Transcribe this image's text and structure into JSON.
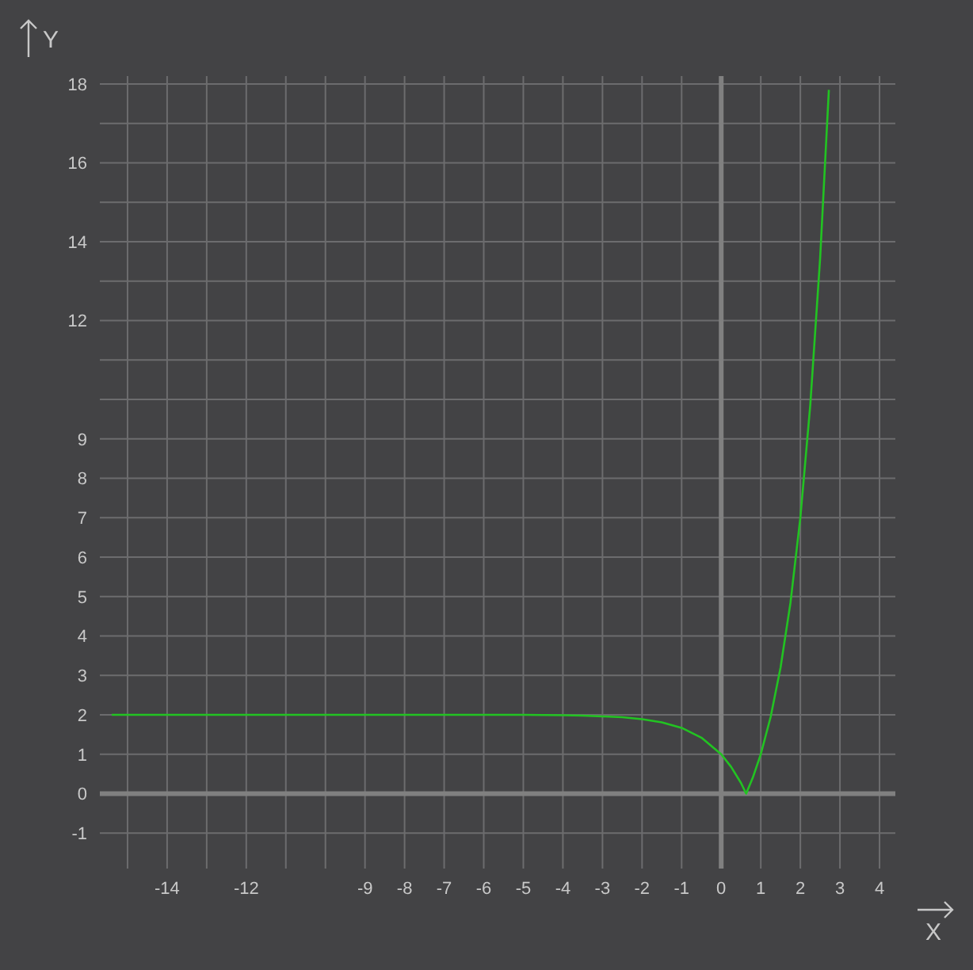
{
  "chart_data": {
    "type": "line",
    "xlabel": "X",
    "ylabel": "Y",
    "x": [
      -15.4,
      -12,
      -10,
      -8,
      -6,
      -5,
      -4,
      -3.5,
      -3,
      -2.5,
      -2,
      -1.5,
      -1,
      -0.5,
      0,
      0.25,
      0.5,
      0.63,
      0.8,
      1,
      1.25,
      1.5,
      1.75,
      2,
      2.25,
      2.5,
      2.72
    ],
    "series": [
      {
        "color": "#22c322",
        "values": [
          2,
          2,
          2,
          2,
          2,
          2,
          1.99,
          1.98,
          1.96,
          1.94,
          1.89,
          1.81,
          1.67,
          1.42,
          1,
          0.68,
          0.27,
          0,
          0.41,
          1,
          1.95,
          3.2,
          4.84,
          7,
          9.85,
          13.59,
          17.85
        ]
      }
    ],
    "xlim": [
      -15.7,
      4.4
    ],
    "ylim": [
      -1.9,
      18.2
    ],
    "xticks": [
      {
        "value": -15,
        "label": null
      },
      -14,
      {
        "value": -13,
        "label": null
      },
      -12,
      {
        "value": -11,
        "label": null
      },
      {
        "value": -10,
        "label": null
      },
      -9,
      -8,
      -7,
      -6,
      -5,
      -4,
      -3,
      -2,
      -1,
      0,
      1,
      2,
      3,
      4
    ],
    "yticks": [
      -1,
      0,
      1,
      2,
      3,
      4,
      5,
      6,
      7,
      8,
      9,
      {
        "value": 10,
        "label": null
      },
      {
        "value": 11,
        "label": null
      },
      12,
      {
        "value": 13,
        "label": null
      },
      14,
      {
        "value": 15,
        "label": null
      },
      16,
      {
        "value": 17,
        "label": null
      },
      18
    ],
    "grid": true,
    "marker": "none",
    "line_style": "solid"
  }
}
